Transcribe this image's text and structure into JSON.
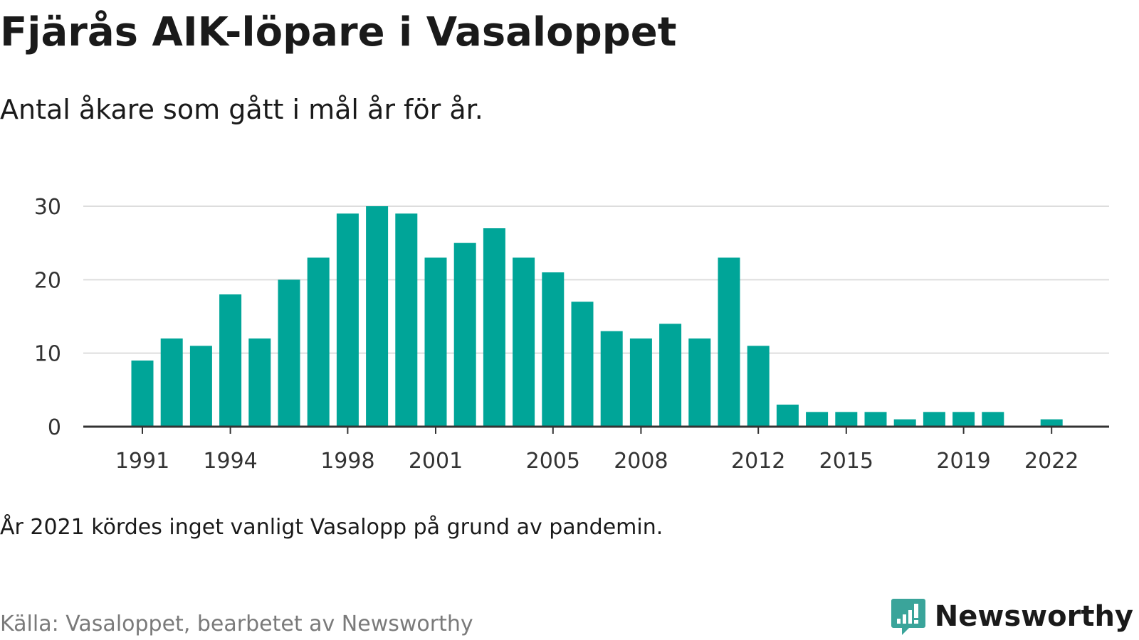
{
  "title": "Fjärås AIK-löpare i Vasaloppet",
  "subtitle": "Antal åkare som gått i mål år för år.",
  "note": "År 2021 kördes inget vanligt Vasalopp på grund av pandemin.",
  "source": "Källa: Vasaloppet, bearbetet av Newsworthy",
  "brand": {
    "name": "Newsworthy",
    "icon": "newsworthy-logo-icon"
  },
  "colors": {
    "bar": "#00a598",
    "brand": "#3aa49a",
    "grid": "#dddddd",
    "axis": "#333333"
  },
  "chart_data": {
    "type": "bar",
    "xlabel": "",
    "ylabel": "",
    "ylim": [
      0,
      30
    ],
    "yticks": [
      0,
      10,
      20,
      30
    ],
    "grid": true,
    "xticks": [
      1991,
      1994,
      1998,
      2001,
      2005,
      2008,
      2012,
      2015,
      2019,
      2022
    ],
    "categories": [
      1991,
      1992,
      1993,
      1994,
      1995,
      1996,
      1997,
      1998,
      1999,
      2000,
      2001,
      2002,
      2003,
      2004,
      2005,
      2006,
      2007,
      2008,
      2009,
      2010,
      2011,
      2012,
      2013,
      2014,
      2015,
      2016,
      2017,
      2018,
      2019,
      2020,
      2021,
      2022
    ],
    "values": [
      9,
      12,
      11,
      18,
      12,
      20,
      23,
      29,
      30,
      29,
      23,
      25,
      27,
      23,
      21,
      17,
      13,
      12,
      14,
      12,
      23,
      11,
      3,
      2,
      2,
      2,
      1,
      2,
      2,
      2,
      null,
      1
    ]
  }
}
